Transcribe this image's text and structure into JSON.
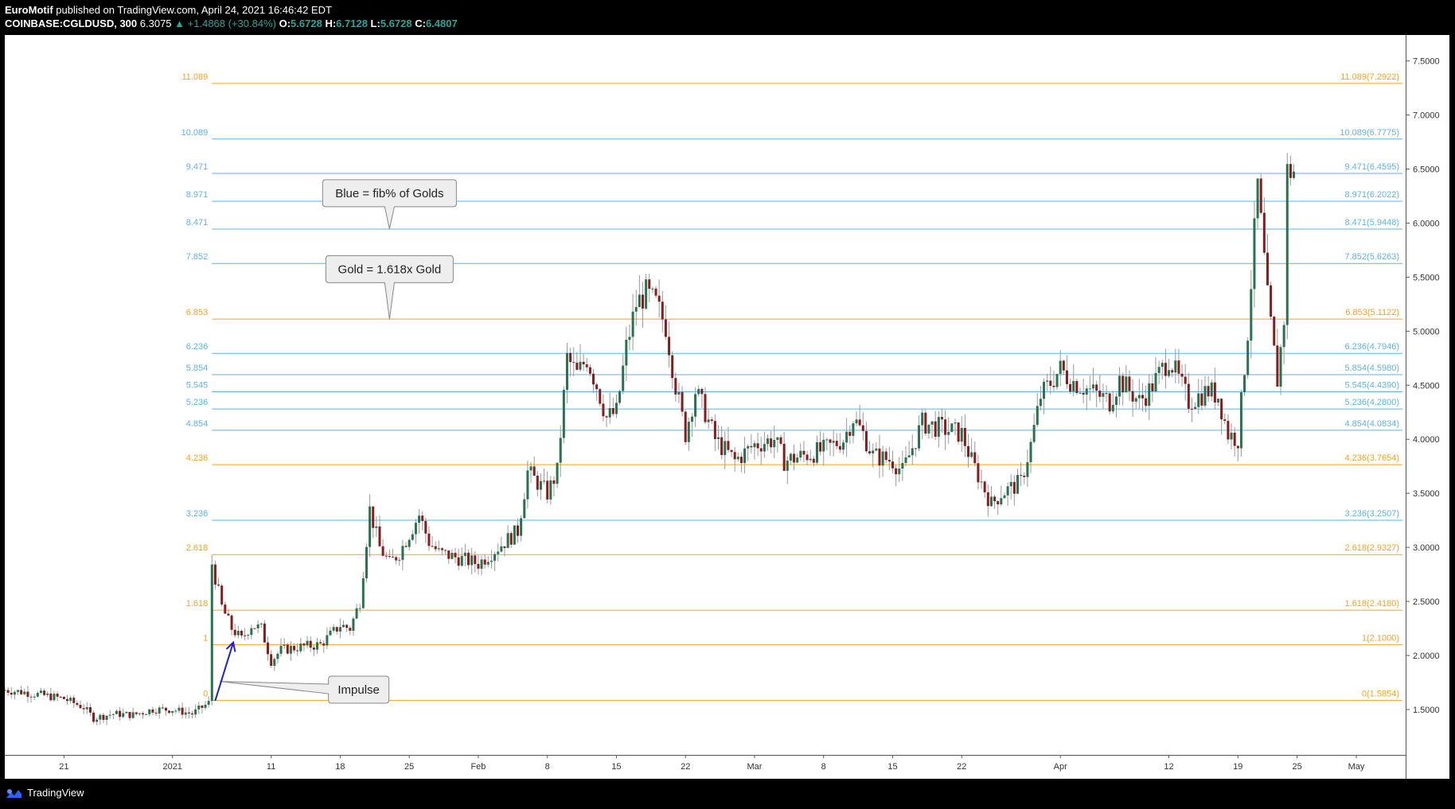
{
  "header": {
    "publisher": "EuroMotif",
    "published_on": "published on TradingView.com, April 24, 2021 16:46:42 EDT",
    "symbol": "COINBASE:CGLDUSD, 300",
    "last": "6.3075",
    "change": "+1.4868 (+30.84%)",
    "o_label": "O:",
    "o": "5.6728",
    "h_label": "H:",
    "h": "6.7128",
    "l_label": "L:",
    "l": "5.6728",
    "c_label": "C:",
    "c": "6.4807"
  },
  "footer": {
    "brand": "TradingView"
  },
  "colors": {
    "gold": "#f7a21b",
    "blue": "#5db3e8",
    "up": "#26734d",
    "down": "#8b1a1a",
    "wick": "#999999",
    "arrow": "#1a22d6"
  },
  "chart_data": {
    "type": "candlestick",
    "x_axis_labels": [
      "21",
      "2021",
      "11",
      "18",
      "25",
      "Feb",
      "8",
      "15",
      "22",
      "Mar",
      "8",
      "15",
      "22",
      "Apr",
      "12",
      "19",
      "25",
      "May"
    ],
    "x_axis_dates": [
      "2020-12-21",
      "2021-01-01",
      "2021-01-11",
      "2021-01-18",
      "2021-01-25",
      "2021-02-01",
      "2021-02-08",
      "2021-02-15",
      "2021-02-22",
      "2021-03-01",
      "2021-03-08",
      "2021-03-15",
      "2021-03-22",
      "2021-04-01",
      "2021-04-12",
      "2021-04-19",
      "2021-04-25",
      "2021-05-01"
    ],
    "x_range": [
      "2020-12-15",
      "2021-05-06"
    ],
    "y_axis_labels": [
      "7.5000",
      "7.0000",
      "6.5000",
      "6.0000",
      "5.5000",
      "5.0000",
      "4.5000",
      "4.0000",
      "3.5000",
      "3.0000",
      "2.5000",
      "2.0000",
      "1.5000"
    ],
    "ylim": [
      1.08,
      7.74
    ],
    "fib_levels": [
      {
        "ratio": "11.089",
        "right": "11.089(7.2922)",
        "price": 7.2922,
        "color": "gold"
      },
      {
        "ratio": "10.089",
        "right": "10.089(6.7775)",
        "price": 6.7775,
        "color": "blue"
      },
      {
        "ratio": "9.471",
        "right": "9.471(6.4595)",
        "price": 6.4595,
        "color": "blue"
      },
      {
        "ratio": "8.971",
        "right": "8.971(6.2022)",
        "price": 6.2022,
        "color": "blue"
      },
      {
        "ratio": "8.471",
        "right": "8.471(5.9448)",
        "price": 5.9448,
        "color": "blue"
      },
      {
        "ratio": "7.852",
        "right": "7.852(5.6263)",
        "price": 5.6263,
        "color": "blue"
      },
      {
        "ratio": "6.853",
        "right": "6.853(5.1122)",
        "price": 5.1122,
        "color": "gold"
      },
      {
        "ratio": "6.236",
        "right": "6.236(4.7946)",
        "price": 4.7946,
        "color": "blue"
      },
      {
        "ratio": "5.854",
        "right": "5.854(4.5980)",
        "price": 4.598,
        "color": "blue"
      },
      {
        "ratio": "5.545",
        "right": "5.545(4.4390)",
        "price": 4.439,
        "color": "blue"
      },
      {
        "ratio": "5.236",
        "right": "5.236(4.2800)",
        "price": 4.28,
        "color": "blue"
      },
      {
        "ratio": "4.854",
        "right": "4.854(4.0834)",
        "price": 4.0834,
        "color": "blue"
      },
      {
        "ratio": "4.236",
        "right": "4.236(3.7654)",
        "price": 3.7654,
        "color": "gold"
      },
      {
        "ratio": "3.236",
        "right": "3.236(3.2507)",
        "price": 3.2507,
        "color": "blue"
      },
      {
        "ratio": "2.618",
        "right": "2.618(2.9327)",
        "price": 2.9327,
        "color": "gold"
      },
      {
        "ratio": "1.618",
        "right": "1.618(2.4180)",
        "price": 2.418,
        "color": "gold"
      },
      {
        "ratio": "1",
        "right": "1(2.1000)",
        "price": 2.1,
        "color": "gold"
      },
      {
        "ratio": "0",
        "right": "0(1.5854)",
        "price": 1.5854,
        "color": "gold"
      }
    ],
    "fib_start_date": "2021-01-05",
    "callouts": [
      {
        "text": "Blue = fib% of Golds",
        "date": "2021-01-23",
        "price": 5.945
      },
      {
        "text": "Gold = 1.618x Gold",
        "date": "2021-01-23",
        "price": 5.11
      },
      {
        "text": "Impulse",
        "date": "2021-01-11",
        "price": 1.72
      }
    ],
    "impulse_arrow": {
      "from_date": "2021-01-05",
      "from_price": 1.58,
      "to_date": "2021-01-07",
      "to_price": 2.12
    },
    "candles": [
      {
        "date": "2020-12-15",
        "close": 1.68
      },
      {
        "date": "2020-12-17",
        "close": 1.66
      },
      {
        "date": "2020-12-19",
        "close": 1.63
      },
      {
        "date": "2020-12-21",
        "close": 1.6
      },
      {
        "date": "2020-12-23",
        "close": 1.52
      },
      {
        "date": "2020-12-24",
        "close": 1.42
      },
      {
        "date": "2020-12-26",
        "close": 1.46
      },
      {
        "date": "2020-12-28",
        "close": 1.45
      },
      {
        "date": "2020-12-30",
        "close": 1.5
      },
      {
        "date": "2021-01-01",
        "close": 1.5
      },
      {
        "date": "2021-01-03",
        "close": 1.46
      },
      {
        "date": "2021-01-04",
        "close": 1.52
      },
      {
        "date": "2021-01-05",
        "close": 1.58
      },
      {
        "date": "2021-01-05",
        "close": 2.85
      },
      {
        "date": "2021-01-06",
        "close": 2.45
      },
      {
        "date": "2021-01-07",
        "close": 2.25
      },
      {
        "date": "2021-01-08",
        "close": 2.15
      },
      {
        "date": "2021-01-09",
        "close": 2.28
      },
      {
        "date": "2021-01-10",
        "close": 2.25
      },
      {
        "date": "2021-01-11",
        "close": 1.95
      },
      {
        "date": "2021-01-12",
        "close": 2.05
      },
      {
        "date": "2021-01-14",
        "close": 2.08
      },
      {
        "date": "2021-01-16",
        "close": 2.1
      },
      {
        "date": "2021-01-18",
        "close": 2.28
      },
      {
        "date": "2021-01-19",
        "close": 2.25
      },
      {
        "date": "2021-01-20",
        "close": 2.5
      },
      {
        "date": "2021-01-21",
        "close": 3.35
      },
      {
        "date": "2021-01-22",
        "close": 3.0
      },
      {
        "date": "2021-01-23",
        "close": 2.85
      },
      {
        "date": "2021-01-24",
        "close": 2.95
      },
      {
        "date": "2021-01-26",
        "close": 3.3
      },
      {
        "date": "2021-01-27",
        "close": 3.05
      },
      {
        "date": "2021-01-28",
        "close": 2.95
      },
      {
        "date": "2021-01-30",
        "close": 2.9
      },
      {
        "date": "2021-02-01",
        "close": 2.85
      },
      {
        "date": "2021-02-03",
        "close": 3.0
      },
      {
        "date": "2021-02-05",
        "close": 3.15
      },
      {
        "date": "2021-02-06",
        "close": 3.7
      },
      {
        "date": "2021-02-08",
        "close": 3.5
      },
      {
        "date": "2021-02-09",
        "close": 3.7
      },
      {
        "date": "2021-02-10",
        "close": 4.75
      },
      {
        "date": "2021-02-11",
        "close": 4.6
      },
      {
        "date": "2021-02-12",
        "close": 4.75
      },
      {
        "date": "2021-02-13",
        "close": 4.5
      },
      {
        "date": "2021-02-14",
        "close": 4.2
      },
      {
        "date": "2021-02-15",
        "close": 4.25
      },
      {
        "date": "2021-02-16",
        "close": 4.85
      },
      {
        "date": "2021-02-17",
        "close": 5.25
      },
      {
        "date": "2021-02-18",
        "close": 5.35
      },
      {
        "date": "2021-02-19",
        "close": 5.25
      },
      {
        "date": "2021-02-20",
        "close": 5.05
      },
      {
        "date": "2021-02-21",
        "close": 4.5
      },
      {
        "date": "2021-02-22",
        "close": 4.05
      },
      {
        "date": "2021-02-23",
        "close": 4.45
      },
      {
        "date": "2021-02-24",
        "close": 4.25
      },
      {
        "date": "2021-02-25",
        "close": 4.0
      },
      {
        "date": "2021-02-27",
        "close": 3.8
      },
      {
        "date": "2021-03-01",
        "close": 3.95
      },
      {
        "date": "2021-03-03",
        "close": 4.0
      },
      {
        "date": "2021-03-04",
        "close": 3.8
      },
      {
        "date": "2021-03-06",
        "close": 3.85
      },
      {
        "date": "2021-03-08",
        "close": 3.9
      },
      {
        "date": "2021-03-10",
        "close": 4.0
      },
      {
        "date": "2021-03-11",
        "close": 4.2
      },
      {
        "date": "2021-03-12",
        "close": 4.05
      },
      {
        "date": "2021-03-13",
        "close": 3.85
      },
      {
        "date": "2021-03-15",
        "close": 3.8
      },
      {
        "date": "2021-03-16",
        "close": 3.7
      },
      {
        "date": "2021-03-18",
        "close": 4.15
      },
      {
        "date": "2021-03-20",
        "close": 4.1
      },
      {
        "date": "2021-03-22",
        "close": 4.05
      },
      {
        "date": "2021-03-23",
        "close": 3.8
      },
      {
        "date": "2021-03-25",
        "close": 3.4
      },
      {
        "date": "2021-03-26",
        "close": 3.5
      },
      {
        "date": "2021-03-28",
        "close": 3.6
      },
      {
        "date": "2021-03-29",
        "close": 3.95
      },
      {
        "date": "2021-03-30",
        "close": 4.4
      },
      {
        "date": "2021-04-01",
        "close": 4.65
      },
      {
        "date": "2021-04-02",
        "close": 4.55
      },
      {
        "date": "2021-04-04",
        "close": 4.45
      },
      {
        "date": "2021-04-06",
        "close": 4.35
      },
      {
        "date": "2021-04-07",
        "close": 4.55
      },
      {
        "date": "2021-04-09",
        "close": 4.35
      },
      {
        "date": "2021-04-10",
        "close": 4.45
      },
      {
        "date": "2021-04-12",
        "close": 4.75
      },
      {
        "date": "2021-04-13",
        "close": 4.55
      },
      {
        "date": "2021-04-14",
        "close": 4.35
      },
      {
        "date": "2021-04-16",
        "close": 4.45
      },
      {
        "date": "2021-04-17",
        "close": 4.4
      },
      {
        "date": "2021-04-18",
        "close": 4.05
      },
      {
        "date": "2021-04-19",
        "close": 4.0
      },
      {
        "date": "2021-04-20",
        "close": 5.0
      },
      {
        "date": "2021-04-21",
        "close": 6.35
      },
      {
        "date": "2021-04-22",
        "close": 5.3
      },
      {
        "date": "2021-04-23",
        "close": 4.55
      },
      {
        "date": "2021-04-24",
        "close": 5.4
      },
      {
        "date": "2021-04-24",
        "close": 6.48
      }
    ]
  }
}
